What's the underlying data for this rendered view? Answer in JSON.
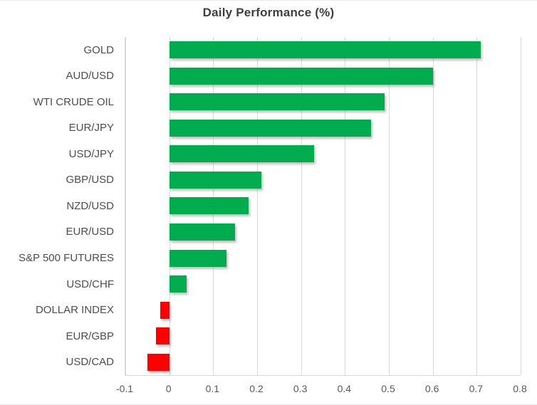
{
  "chart_data": {
    "type": "bar",
    "orientation": "horizontal",
    "title": "Daily Performance (%)",
    "unit": "%",
    "categories": [
      "GOLD",
      "AUD/USD",
      "WTI CRUDE OIL",
      "EUR/JPY",
      "USD/JPY",
      "GBP/USD",
      "NZD/USD",
      "EUR/USD",
      "S&P 500 FUTURES",
      "USD/CHF",
      "DOLLAR INDEX",
      "EUR/GBP",
      "USD/CAD"
    ],
    "values": [
      0.71,
      0.6,
      0.49,
      0.46,
      0.33,
      0.21,
      0.18,
      0.15,
      0.13,
      0.04,
      -0.02,
      -0.03,
      -0.05
    ],
    "xlim": [
      -0.1,
      0.8
    ],
    "xticks": [
      -0.1,
      0,
      0.1,
      0.2,
      0.3,
      0.4,
      0.5,
      0.6,
      0.7,
      0.8
    ],
    "xtick_labels": [
      "-0.1",
      "0",
      "0.1",
      "0.2",
      "0.3",
      "0.4",
      "0.5",
      "0.6",
      "0.7",
      "0.8"
    ],
    "grid": true,
    "legend": false,
    "positive_color": "#00AC4E",
    "negative_color": "#FF0000",
    "gridline_color": "#D9D9D9"
  }
}
